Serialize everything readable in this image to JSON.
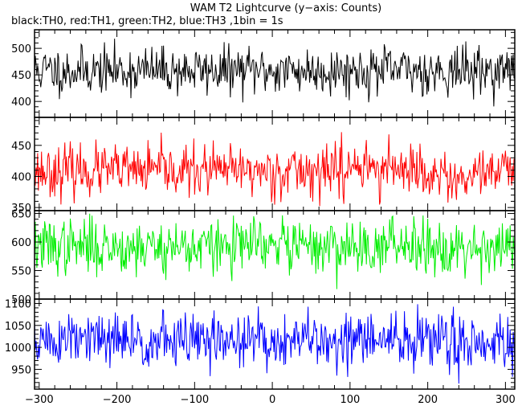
{
  "title": "WAM T2 Lightcurve (y−axis: Counts)",
  "subtitle": "black:TH0, red:TH1, green:TH2, blue:TH3 ,1bin = 1s",
  "chart_data": {
    "type": "line",
    "x_range": [
      -306,
      312
    ],
    "x_ticks": [
      -300,
      -200,
      -100,
      0,
      100,
      200,
      300
    ],
    "grid": false,
    "panels": [
      {
        "name": "TH0",
        "color": "#000000",
        "ylim": [
          370,
          535
        ],
        "y_ticks": [
          400,
          450,
          500
        ],
        "mean": 458,
        "sigma": 22,
        "clip": [
          385,
          525
        ],
        "seed": 11
      },
      {
        "name": "TH1",
        "color": "#ff0000",
        "ylim": [
          345,
          495
        ],
        "y_ticks": [
          350,
          400,
          450
        ],
        "mean": 409,
        "sigma": 20,
        "clip": [
          352,
          488
        ],
        "seed": 23
      },
      {
        "name": "TH2",
        "color": "#00ee00",
        "ylim": [
          500,
          655
        ],
        "y_ticks": [
          500,
          550,
          600,
          650
        ],
        "mean": 592,
        "sigma": 24,
        "clip": [
          505,
          650
        ],
        "seed": 37
      },
      {
        "name": "TH3",
        "color": "#0000ff",
        "ylim": [
          905,
          1110
        ],
        "y_ticks": [
          950,
          1000,
          1050,
          1100
        ],
        "mean": 1015,
        "sigma": 32,
        "clip": [
          908,
          1108
        ],
        "seed": 51
      }
    ]
  }
}
